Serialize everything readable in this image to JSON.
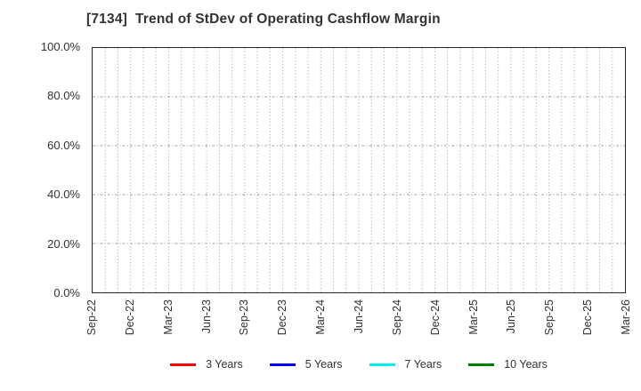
{
  "chart_data": {
    "type": "line",
    "title": "[7134]  Trend of StDev of Operating Cashflow Margin",
    "x_tick_labels": [
      "Sep-22",
      "Dec-22",
      "Mar-23",
      "Jun-23",
      "Sep-23",
      "Dec-23",
      "Mar-24",
      "Jun-24",
      "Sep-24",
      "Dec-24",
      "Mar-25",
      "Jun-25",
      "Sep-25",
      "Dec-25",
      "Mar-26"
    ],
    "x_total_months": 42,
    "x_label_every_months": 3,
    "y_tick_labels": [
      "0.0%",
      "20.0%",
      "40.0%",
      "60.0%",
      "80.0%",
      "100.0%"
    ],
    "ylim": [
      0,
      100
    ],
    "y_tick_step_percent": 20,
    "grid": "on",
    "legend_position": "bottom",
    "series": [
      {
        "name": "3 Years",
        "color": "#ff0000",
        "values": []
      },
      {
        "name": "5 Years",
        "color": "#0000ff",
        "values": []
      },
      {
        "name": "7 Years",
        "color": "#00eeee",
        "values": []
      },
      {
        "name": "10 Years",
        "color": "#008000",
        "values": []
      }
    ]
  },
  "styles": {
    "frame_color": "#262626",
    "grid_color": "#a0a0a0",
    "text_color": "#333333",
    "background": "#ffffff"
  }
}
